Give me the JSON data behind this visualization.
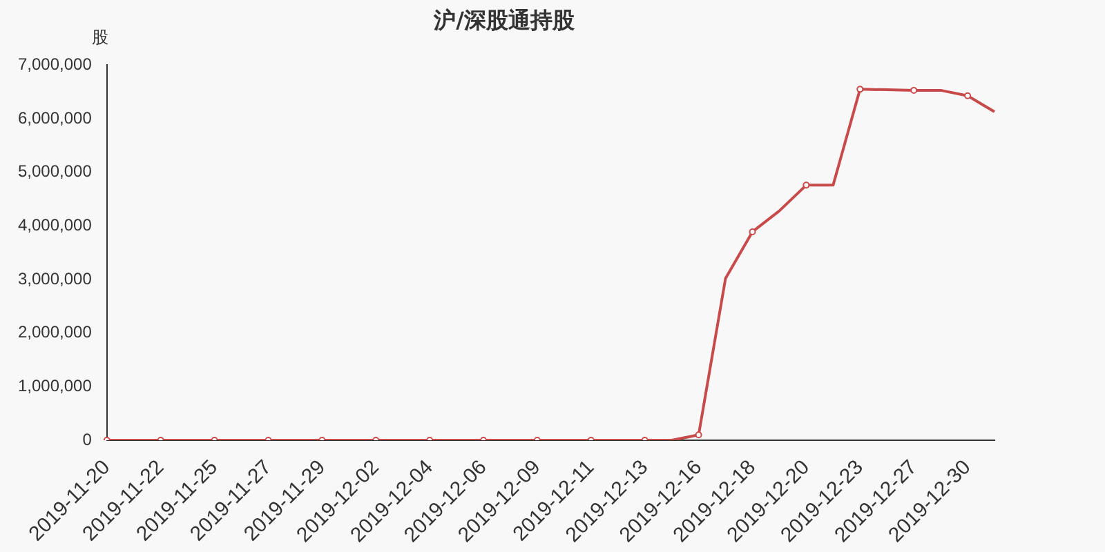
{
  "chart_data": {
    "type": "line",
    "title": "沪/深股通持股",
    "ylabel": "股",
    "categories": [
      "2019-11-20",
      null,
      "2019-11-22",
      null,
      "2019-11-25",
      null,
      "2019-11-27",
      null,
      "2019-11-29",
      null,
      "2019-12-02",
      null,
      "2019-12-04",
      null,
      "2019-12-06",
      null,
      "2019-12-09",
      null,
      "2019-12-11",
      null,
      "2019-12-13",
      null,
      "2019-12-16",
      null,
      "2019-12-18",
      null,
      "2019-12-20",
      null,
      "2019-12-23",
      null,
      "2019-12-27",
      null,
      "2019-12-30",
      null
    ],
    "series": [
      {
        "color": "#c84b4b",
        "values": [
          0,
          0,
          0,
          0,
          0,
          0,
          0,
          0,
          0,
          0,
          0,
          0,
          0,
          0,
          0,
          0,
          0,
          0,
          0,
          0,
          0,
          0,
          100000,
          3020000,
          3890000,
          4280000,
          4760000,
          4760000,
          6550000,
          6540000,
          6530000,
          6530000,
          6430000,
          6130000
        ]
      }
    ],
    "ylim": [
      0,
      7000000
    ],
    "yticks": [
      {
        "value": 0,
        "label": "0"
      },
      {
        "value": 1000000,
        "label": "1,000,000"
      },
      {
        "value": 2000000,
        "label": "2,000,000"
      },
      {
        "value": 3000000,
        "label": "3,000,000"
      },
      {
        "value": 4000000,
        "label": "4,000,000"
      },
      {
        "value": 5000000,
        "label": "5,000,000"
      },
      {
        "value": 6000000,
        "label": "6,000,000"
      },
      {
        "value": 7000000,
        "label": "7,000,000"
      }
    ],
    "grid": false,
    "legend": false,
    "marker": "circle",
    "line_style": "solid"
  }
}
